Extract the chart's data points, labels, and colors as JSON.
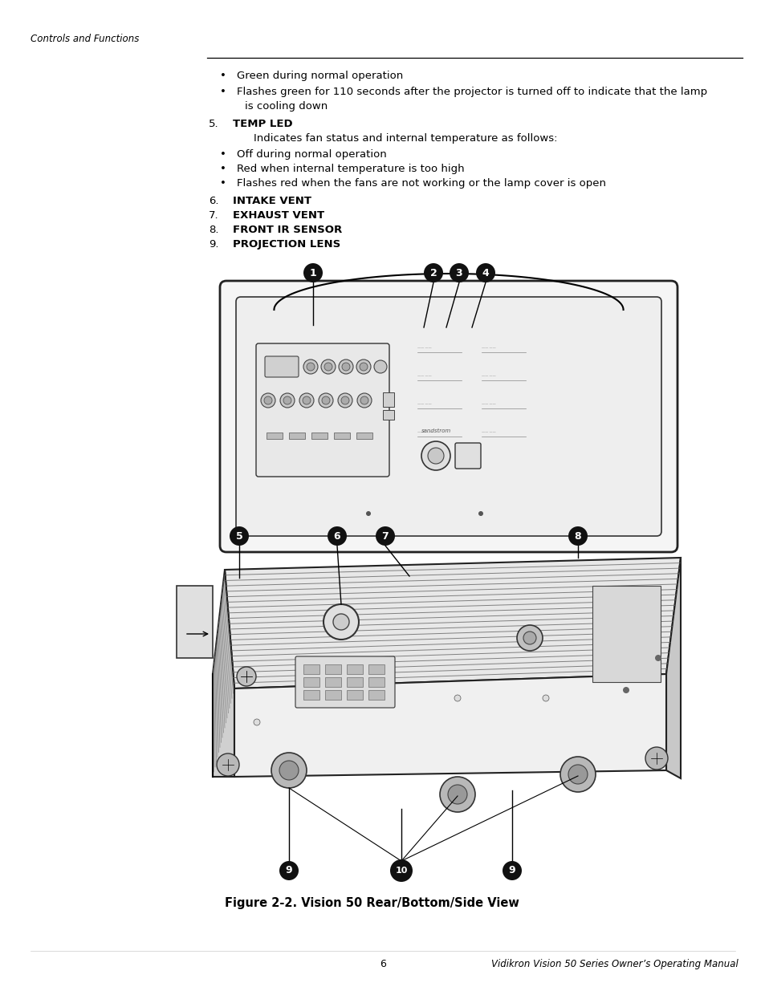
{
  "bg_color": "#ffffff",
  "header_italic": "Controls and Functions",
  "page_number": "6",
  "manual_title": "Vidikron Vision 50 Series Owner’s Operating Manual",
  "figure_caption": "Figure 2-2. Vision 50 Rear/Bottom/Side View",
  "content_lines": [
    {
      "type": "bullet",
      "text": "Green during normal operation"
    },
    {
      "type": "bullet2",
      "text": "Flashes green for 110 seconds after the projector is turned off to indicate that the lamp",
      "text2": "is cooling down"
    },
    {
      "type": "numbered_bold",
      "num": "5.",
      "label": "TEMP LED",
      "sub": "Indicates fan status and internal temperature as follows:"
    },
    {
      "type": "bullet",
      "text": "Off during normal operation"
    },
    {
      "type": "bullet",
      "text": "Red when internal temperature is too high"
    },
    {
      "type": "bullet",
      "text": "Flashes red when the fans are not working or the lamp cover is open"
    },
    {
      "type": "numbered_bold",
      "num": "6.",
      "label": "INTAKE VENT",
      "sub": ""
    },
    {
      "type": "numbered_bold",
      "num": "7.",
      "label": "EXHAUST VENT",
      "sub": ""
    },
    {
      "type": "numbered_bold",
      "num": "8.",
      "label": "FRONT IR SENSOR",
      "sub": ""
    },
    {
      "type": "numbered_bold",
      "num": "9.",
      "label": "PROJECTION LENS",
      "sub": ""
    }
  ]
}
